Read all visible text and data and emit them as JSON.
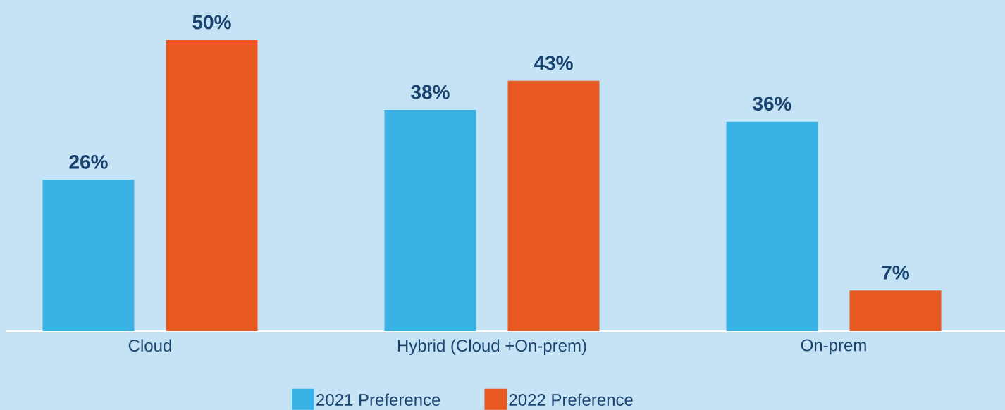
{
  "chart_data": {
    "type": "bar",
    "categories": [
      "Cloud",
      "Hybrid (Cloud +On-prem)",
      "On-prem"
    ],
    "series": [
      {
        "name": "2021 Preference",
        "color": "#3bb2e6",
        "values": [
          26,
          38,
          36
        ],
        "value_labels": [
          "26%",
          "38%",
          "36%"
        ]
      },
      {
        "name": "2022 Preference",
        "color": "#e95a22",
        "values": [
          50,
          43,
          7
        ],
        "value_labels": [
          "50%",
          "43%",
          "7%"
        ]
      }
    ],
    "legend": "bottom"
  }
}
